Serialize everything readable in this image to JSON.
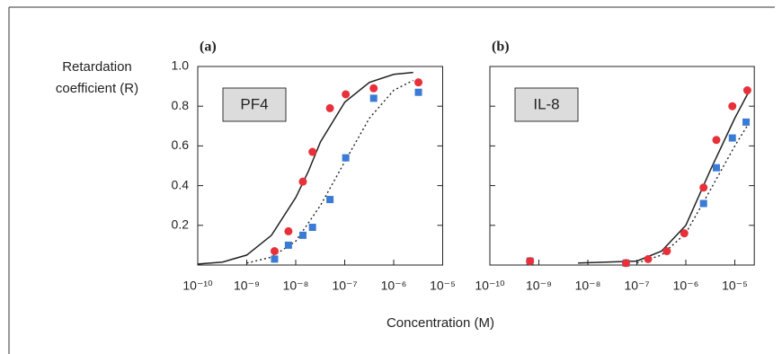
{
  "xlabel": "Concentration (M)",
  "chart_data": [
    {
      "type": "scatter",
      "title": "(a)",
      "annotation": "PF4",
      "ylabel": [
        "Retardation",
        "coefficient (R)"
      ],
      "log_x": true,
      "xlim": [
        1e-10,
        1e-05
      ],
      "xticks": [
        {
          "value": 1e-10,
          "label": "10⁻¹⁰"
        },
        {
          "value": 1e-09,
          "label": "10⁻⁹"
        },
        {
          "value": 1e-08,
          "label": "10⁻⁸"
        },
        {
          "value": 1e-07,
          "label": "10⁻⁷"
        },
        {
          "value": 1e-06,
          "label": "10⁻⁶"
        },
        {
          "value": 1e-05,
          "label": "10⁻⁵"
        }
      ],
      "ylim": [
        0,
        1
      ],
      "yticks": [
        0.2,
        0.4,
        0.6,
        0.8,
        {
          "value": 1,
          "label": "1.0"
        }
      ],
      "series": [
        {
          "marker": "circle",
          "color": "#e8303a",
          "x": [
            3.7e-09,
            7.1e-09,
            1.4e-08,
            2.2e-08,
            5e-08,
            1.05e-07,
            3.9e-07,
            3.2e-06
          ],
          "values": [
            0.07,
            0.17,
            0.42,
            0.57,
            0.79,
            0.86,
            0.89,
            0.92
          ]
        },
        {
          "marker": "square",
          "color": "#3a7bd5",
          "x": [
            3.7e-09,
            7.1e-09,
            1.4e-08,
            2.2e-08,
            5e-08,
            1.05e-07,
            3.9e-07,
            3.2e-06
          ],
          "values": [
            0.03,
            0.1,
            0.15,
            0.19,
            0.33,
            0.54,
            0.84,
            0.87
          ]
        },
        {
          "line": "solid",
          "color": "#222222",
          "x": [
            1e-10,
            3.2e-10,
            1e-09,
            3.2e-09,
            1e-08,
            1.8e-08,
            3.2e-08,
            1e-07,
            3.2e-07,
            1e-06,
            2.5e-06
          ],
          "values": [
            0.005,
            0.015,
            0.05,
            0.15,
            0.34,
            0.47,
            0.62,
            0.82,
            0.92,
            0.96,
            0.97
          ]
        },
        {
          "line": "dotted",
          "color": "#222222",
          "x": [
            1e-09,
            3.2e-09,
            1e-08,
            3.2e-08,
            1e-07,
            3.2e-07,
            1e-06,
            2.5e-06
          ],
          "values": [
            0.01,
            0.04,
            0.12,
            0.3,
            0.52,
            0.74,
            0.88,
            0.93
          ]
        }
      ]
    },
    {
      "type": "scatter",
      "title": "(b)",
      "annotation": "IL-8",
      "log_x": true,
      "xlim": [
        1e-10,
        2.5e-05
      ],
      "xticks": [
        {
          "value": 1e-10,
          "label": "10⁻¹⁰"
        },
        {
          "value": 1e-09,
          "label": "10⁻⁹"
        },
        {
          "value": 1e-08,
          "label": "10⁻⁸"
        },
        {
          "value": 1e-07,
          "label": "10⁻⁷"
        },
        {
          "value": 1e-06,
          "label": "10⁻⁶"
        },
        {
          "value": 1e-05,
          "label": "10⁻⁵"
        }
      ],
      "ylim": [
        0,
        1
      ],
      "yticks": [
        0.2,
        0.4,
        0.6,
        0.8,
        1
      ],
      "series": [
        {
          "marker": "square",
          "color": "#3a7bd5",
          "x": [
            6.6e-10,
            6e-08,
            2.3e-06,
            4.2e-06,
            8.9e-06,
            1.7e-05
          ],
          "values": [
            0.02,
            0.01,
            0.31,
            0.49,
            0.64,
            0.72
          ]
        },
        {
          "marker": "circle",
          "color": "#e8303a",
          "x": [
            6.6e-10,
            6e-08,
            1.7e-07,
            4.1e-07,
            9.3e-07,
            2.3e-06,
            4.2e-06,
            8.9e-06,
            1.8e-05
          ],
          "values": [
            0.02,
            0.01,
            0.03,
            0.07,
            0.16,
            0.39,
            0.63,
            0.8,
            0.88
          ]
        },
        {
          "line": "solid",
          "color": "#222222",
          "x": [
            6.3e-09,
            1e-07,
            3.2e-07,
            1e-06,
            3.2e-06,
            1e-05,
            2e-05
          ],
          "values": [
            0.01,
            0.02,
            0.07,
            0.2,
            0.48,
            0.74,
            0.88
          ]
        },
        {
          "line": "dotted",
          "color": "#222222",
          "x": [
            1e-07,
            3.2e-07,
            1e-06,
            3.2e-06,
            1e-05,
            2e-05
          ],
          "values": [
            0.01,
            0.05,
            0.16,
            0.38,
            0.6,
            0.72
          ]
        }
      ]
    }
  ]
}
